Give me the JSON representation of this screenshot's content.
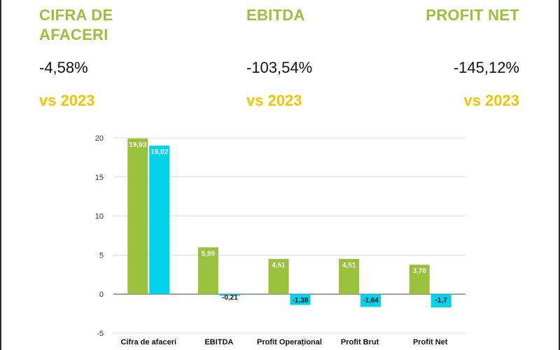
{
  "kpis": [
    {
      "title_line1": "CIFRA DE",
      "title_line2": "AFACERI",
      "value": "-4,58%",
      "comparison": "vs 2023"
    },
    {
      "title_line1": "EBITDA",
      "title_line2": "",
      "value": "-103,54%",
      "comparison": "vs 2023"
    },
    {
      "title_line1": "PROFIT NET",
      "title_line2": "",
      "value": "-145,12%",
      "comparison": "vs 2023"
    }
  ],
  "colors": {
    "green": "#99c13b",
    "cyan": "#00d2ec",
    "yellow": "#f5c400",
    "gridline": "#dcdcdc",
    "zeroline": "#5a5a5a"
  },
  "chart_data": {
    "type": "bar",
    "categories": [
      "Cifra de afaceri",
      "EBITDA",
      "Profit Operațional",
      "Profit Brut",
      "Profit Net"
    ],
    "series": [
      {
        "values": [
          19.93,
          5.99,
          4.51,
          4.51,
          3.76
        ],
        "labels": [
          "19,93",
          "5,99",
          "4,51",
          "4,51",
          "3,76"
        ],
        "color": "#99c13b"
      },
      {
        "values": [
          19.02,
          -0.21,
          -1.38,
          -1.64,
          -1.7
        ],
        "labels": [
          "19,02",
          "-0,21",
          "-1,38",
          "-1,64",
          "-1,7"
        ],
        "color": "#00d2ec"
      }
    ],
    "ylim": [
      -5,
      20
    ],
    "yticks": [
      -5,
      0,
      5,
      10,
      15,
      20
    ],
    "grid": true,
    "legend": "none"
  }
}
